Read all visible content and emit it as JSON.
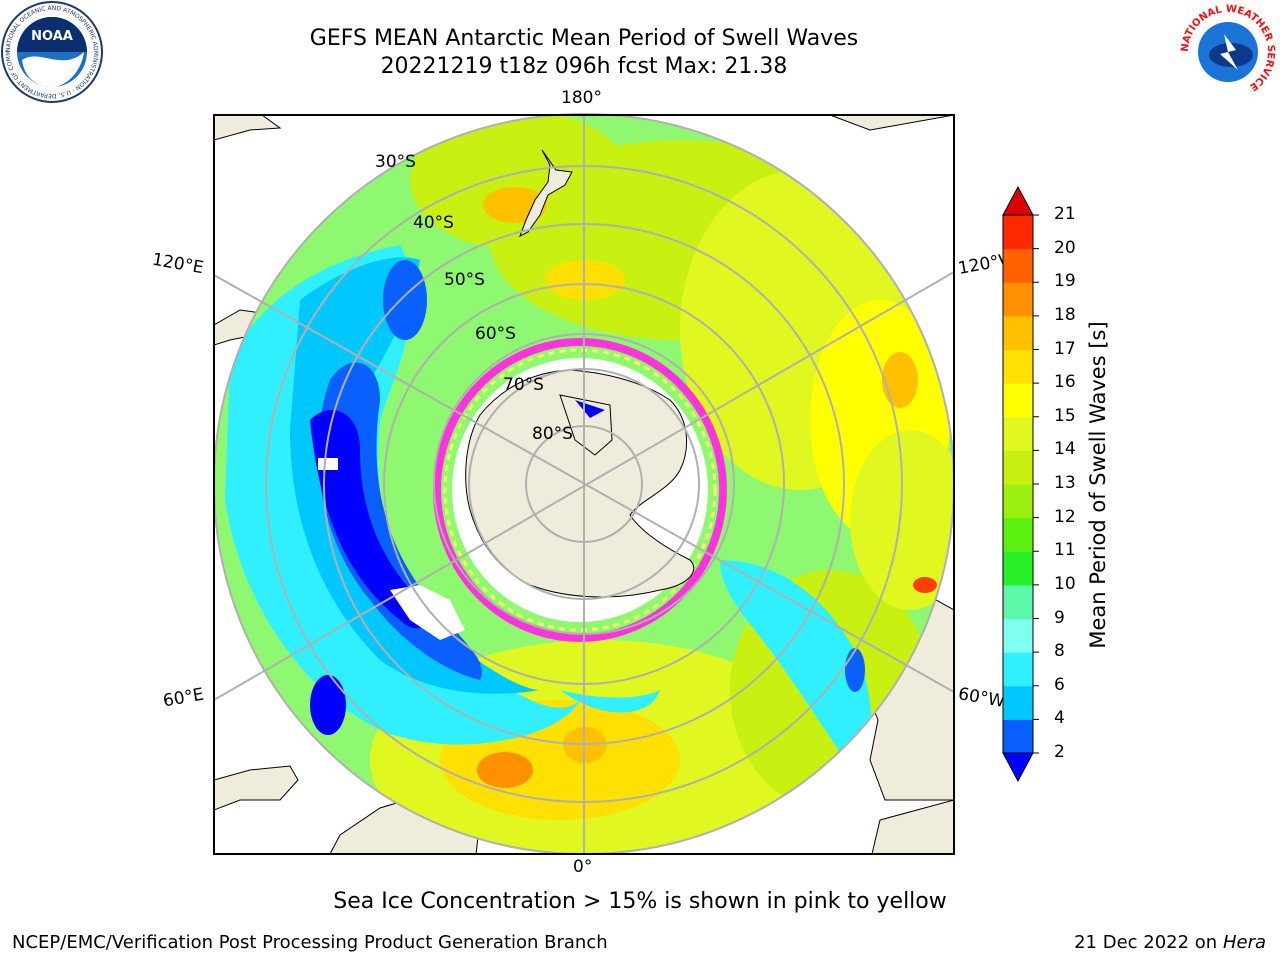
{
  "header": {
    "title_line1": "GEFS MEAN Antarctic Mean Period of Swell Waves",
    "title_line2": "20221219 t18z 096h fcst   Max: 21.38"
  },
  "logos": {
    "left": "NOAA",
    "right": "NATIONAL WEATHER SERVICE",
    "left_ring_text": "NATIONAL OCEANIC AND ATMOSPHERIC ADMINISTRATION · U.S. DEPARTMENT OF COMMERCE"
  },
  "map": {
    "projection": "south-polar-stereographic",
    "longitude_labels": {
      "top": "180°",
      "left_upper": "120°E",
      "right_upper": "120°W",
      "left_lower": "60°E",
      "right_lower": "60°W",
      "bottom": "0°"
    },
    "latitude_labels": [
      "30°S",
      "40°S",
      "50°S",
      "60°S",
      "70°S",
      "80°S"
    ],
    "land_color": "#efecdc",
    "grid_color": "#b0b0b0"
  },
  "colorbar": {
    "label": "Mean Period of Swell Waves [s]",
    "ticks": [
      "2",
      "4",
      "6",
      "8",
      "9",
      "10",
      "11",
      "12",
      "13",
      "14",
      "15",
      "16",
      "17",
      "18",
      "19",
      "20",
      "21"
    ],
    "colors": [
      "#0a60ff",
      "#00c8ff",
      "#30f0ff",
      "#7ffff0",
      "#5cf8a8",
      "#28f028",
      "#5cf010",
      "#9cf010",
      "#c8f010",
      "#e0f820",
      "#ffff00",
      "#ffe000",
      "#ffc000",
      "#ff9000",
      "#ff6000",
      "#ff2800"
    ],
    "under_color": "#0000ff",
    "over_color": "#dd0000"
  },
  "caption": "Sea Ice Concentration > 15% is shown in pink to yellow",
  "footer": {
    "left": "NCEP/EMC/Verification Post Processing Product Generation Branch",
    "right_date": "21 Dec 2022 on",
    "right_machine": "Hera"
  }
}
